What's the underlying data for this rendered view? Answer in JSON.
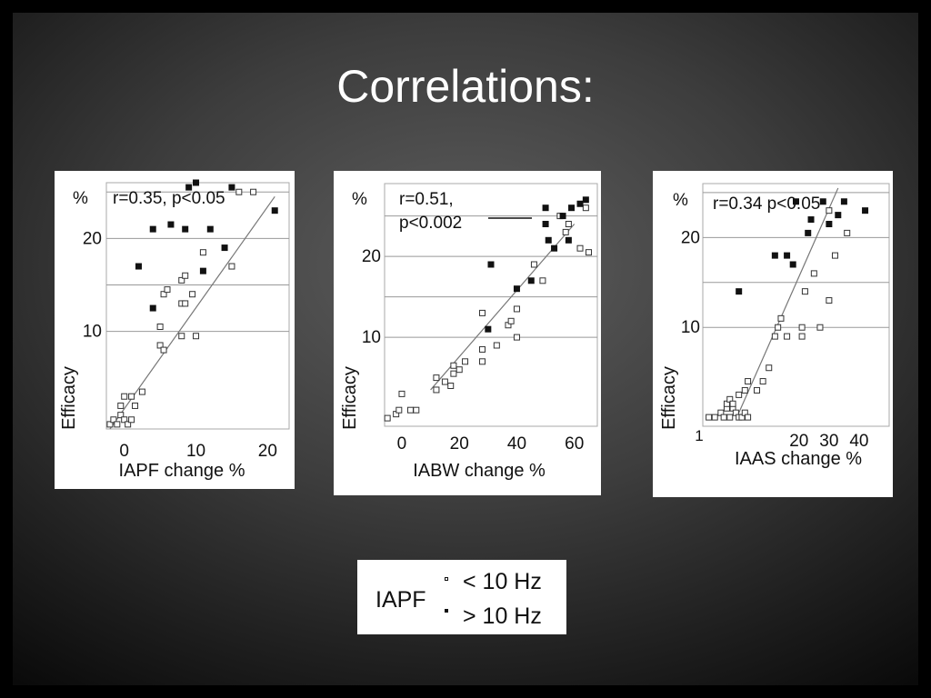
{
  "slide": {
    "title": "Correlations:",
    "background_color": "#3d3d3d",
    "title_color": "#ffffff"
  },
  "legend": {
    "title": "IAPF",
    "items": [
      {
        "label": "< 10 Hz",
        "marker": "open-square-icon"
      },
      {
        "label": "> 10 Hz",
        "marker": "filled-square-icon"
      }
    ]
  },
  "chart_data": [
    {
      "type": "scatter",
      "annotation": "r=0.35, p<0.05",
      "xlabel": "IAPF change %",
      "ylabel": "Efficacy",
      "y_unit": "%",
      "xlim": [
        -2.5,
        23
      ],
      "ylim": [
        -0.5,
        26
      ],
      "x_ticks": [
        0,
        10,
        20
      ],
      "y_ticks": [
        10,
        20
      ],
      "gridlines_y": [
        10,
        15,
        20,
        25
      ],
      "regression": [
        [
          -2,
          -0.5
        ],
        [
          21,
          24.5
        ]
      ],
      "series": [
        {
          "marker": "open-square",
          "points": [
            [
              -2,
              0
            ],
            [
              -1.5,
              0.5
            ],
            [
              -1,
              0
            ],
            [
              -0.5,
              1
            ],
            [
              0,
              0.5
            ],
            [
              0.5,
              0
            ],
            [
              1,
              0.5
            ],
            [
              -0.5,
              2
            ],
            [
              0,
              3
            ],
            [
              1,
              3
            ],
            [
              1.5,
              2
            ],
            [
              2.5,
              3.5
            ],
            [
              5,
              8.5
            ],
            [
              5.5,
              8
            ],
            [
              5,
              10.5
            ],
            [
              5.5,
              14
            ],
            [
              6,
              14.5
            ],
            [
              8,
              13
            ],
            [
              8.5,
              13
            ],
            [
              8,
              15.5
            ],
            [
              8.5,
              16
            ],
            [
              9.5,
              14
            ],
            [
              10,
              9.5
            ],
            [
              11,
              18.5
            ],
            [
              8,
              9.5
            ],
            [
              15,
              17
            ],
            [
              16,
              25
            ],
            [
              18,
              25
            ]
          ]
        },
        {
          "marker": "filled-square",
          "points": [
            [
              2,
              17
            ],
            [
              4,
              12.5
            ],
            [
              4,
              21
            ],
            [
              6.5,
              21.5
            ],
            [
              8.5,
              21
            ],
            [
              9,
              25.5
            ],
            [
              10,
              26
            ],
            [
              12,
              21
            ],
            [
              11,
              16.5
            ],
            [
              14,
              19
            ],
            [
              15,
              25.5
            ],
            [
              21,
              23
            ]
          ]
        }
      ]
    },
    {
      "type": "scatter",
      "annotation": "r=0.51, p<0.002",
      "annotation_lines": [
        "r=0.51,",
        "p<0.002"
      ],
      "xlabel": "IABW change %",
      "ylabel": "Efficacy",
      "y_unit": "%",
      "xlim": [
        -6,
        68
      ],
      "ylim": [
        -1,
        29
      ],
      "x_ticks": [
        0,
        20,
        40,
        60
      ],
      "y_ticks": [
        10,
        20
      ],
      "gridlines_y": [
        10,
        15,
        20,
        25
      ],
      "regression": [
        [
          10,
          3.5
        ],
        [
          60,
          24
        ]
      ],
      "series": [
        {
          "marker": "open-square",
          "points": [
            [
              -5,
              0
            ],
            [
              -2,
              0.5
            ],
            [
              -1,
              1
            ],
            [
              0,
              3
            ],
            [
              3,
              1
            ],
            [
              5,
              1
            ],
            [
              12,
              3.5
            ],
            [
              12,
              5
            ],
            [
              15,
              4.5
            ],
            [
              17,
              4
            ],
            [
              18,
              5.5
            ],
            [
              18,
              6.5
            ],
            [
              20,
              6
            ],
            [
              22,
              7
            ],
            [
              28,
              7
            ],
            [
              28,
              8.5
            ],
            [
              28,
              13
            ],
            [
              33,
              9
            ],
            [
              37,
              11.5
            ],
            [
              38,
              12
            ],
            [
              40,
              10
            ],
            [
              40,
              13.5
            ],
            [
              46,
              19
            ],
            [
              49,
              17
            ],
            [
              55,
              25
            ],
            [
              57,
              23
            ],
            [
              58,
              24
            ],
            [
              62,
              21
            ],
            [
              64,
              26
            ],
            [
              65,
              20.5
            ]
          ]
        },
        {
          "marker": "filled-square",
          "points": [
            [
              30,
              11
            ],
            [
              31,
              19
            ],
            [
              40,
              16
            ],
            [
              45,
              17
            ],
            [
              51,
              22
            ],
            [
              50,
              24
            ],
            [
              50,
              26
            ],
            [
              56,
              25
            ],
            [
              58,
              22
            ],
            [
              59,
              26
            ],
            [
              62,
              26.5
            ],
            [
              64,
              27
            ],
            [
              53,
              21
            ]
          ]
        }
      ]
    },
    {
      "type": "scatter",
      "annotation": "r=0.34  p<0.05",
      "xlabel": "IAAS  change %",
      "ylabel": "Efficacy",
      "y_unit": "%",
      "xlim": [
        -12,
        50
      ],
      "ylim": [
        -1,
        26
      ],
      "x_ticks": [
        20,
        30,
        40
      ],
      "x_tick_labels": [
        "20",
        "30",
        "40"
      ],
      "x_extra_tick_label": "1",
      "y_ticks": [
        10,
        20
      ],
      "gridlines_y": [
        10,
        15,
        20,
        25
      ],
      "regression": [
        [
          0,
          0.5
        ],
        [
          33,
          25.5
        ]
      ],
      "series": [
        {
          "marker": "open-square",
          "points": [
            [
              -10,
              0
            ],
            [
              -8,
              0
            ],
            [
              -6,
              0.5
            ],
            [
              -5,
              0
            ],
            [
              -4,
              1
            ],
            [
              -3,
              0
            ],
            [
              -2,
              1
            ],
            [
              -1,
              0.5
            ],
            [
              0,
              0
            ],
            [
              1,
              0
            ],
            [
              2,
              0.5
            ],
            [
              3,
              0
            ],
            [
              -4,
              1.5
            ],
            [
              -3,
              2
            ],
            [
              -2,
              1.5
            ],
            [
              0,
              2.5
            ],
            [
              2,
              3
            ],
            [
              3,
              4
            ],
            [
              6,
              3
            ],
            [
              8,
              4
            ],
            [
              10,
              5.5
            ],
            [
              12,
              9
            ],
            [
              13,
              10
            ],
            [
              14,
              11
            ],
            [
              16,
              9
            ],
            [
              21,
              9
            ],
            [
              21,
              10
            ],
            [
              22,
              14
            ],
            [
              25,
              16
            ],
            [
              27,
              10
            ],
            [
              30,
              13
            ],
            [
              30,
              23
            ],
            [
              32,
              18
            ],
            [
              36,
              20.5
            ]
          ]
        },
        {
          "marker": "filled-square",
          "points": [
            [
              0,
              14
            ],
            [
              12,
              18
            ],
            [
              16,
              18
            ],
            [
              18,
              17
            ],
            [
              19,
              24
            ],
            [
              23,
              20.5
            ],
            [
              24,
              22
            ],
            [
              28,
              24
            ],
            [
              30,
              21.5
            ],
            [
              33,
              22.5
            ],
            [
              35,
              24
            ],
            [
              42,
              23
            ]
          ]
        }
      ]
    }
  ]
}
